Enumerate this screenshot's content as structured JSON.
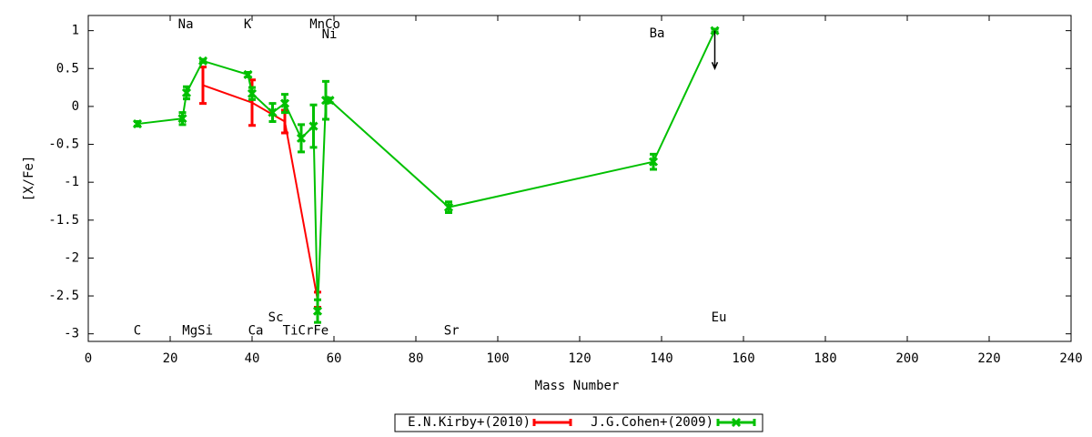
{
  "chart_data": {
    "type": "errorbar-line",
    "x_label": "Mass Number",
    "y_label": "[X/Fe]",
    "xlim": [
      0,
      240
    ],
    "ylim": [
      -3.1,
      1.2
    ],
    "xticks": [
      0,
      20,
      40,
      60,
      80,
      100,
      120,
      140,
      160,
      180,
      200,
      220,
      240
    ],
    "yticks": [
      -3,
      -2.5,
      -2,
      -1.5,
      -1,
      -0.5,
      0,
      0.5,
      1
    ],
    "legend_position": "bottom",
    "series": [
      {
        "name": "E.N.Kirby+(2010)",
        "color": "#ff0000",
        "x": [
          28,
          40,
          48,
          56
        ],
        "values": [
          0.28,
          0.05,
          -0.2,
          -2.55
        ],
        "errors": [
          0.24,
          0.3,
          0.15,
          0.1
        ]
      },
      {
        "name": "J.G.Cohen+(2009)",
        "color": "#00c000",
        "x": [
          12,
          23,
          24,
          28,
          39,
          40,
          45,
          48,
          52,
          55,
          56,
          58,
          59,
          88,
          138,
          153
        ],
        "values": [
          -0.23,
          -0.16,
          0.18,
          0.6,
          0.42,
          0.17,
          -0.08,
          0.04,
          -0.42,
          -0.26,
          -2.7,
          0.08,
          0.08,
          -1.33,
          -0.73,
          1.0
        ],
        "errors": [
          0.03,
          0.08,
          0.08,
          0.02,
          0.03,
          0.08,
          0.12,
          0.12,
          0.18,
          0.28,
          0.15,
          0.25,
          0.03,
          0.07,
          0.1,
          0.02
        ]
      }
    ],
    "upper_limit": {
      "x": 153,
      "from": 1.0,
      "to": 0.5,
      "color": "#000000"
    },
    "annotations": [
      {
        "text": "Na",
        "x": 23.8,
        "y": 1.08
      },
      {
        "text": "K",
        "x": 38.9,
        "y": 1.08
      },
      {
        "text": "MnCo",
        "x": 57.8,
        "y": 1.08
      },
      {
        "text": "Ni",
        "x": 58.9,
        "y": 0.95
      },
      {
        "text": "Ba",
        "x": 138.9,
        "y": 0.96
      },
      {
        "text": "C",
        "x": 12,
        "y": -2.96
      },
      {
        "text": "MgSi",
        "x": 26.7,
        "y": -2.96
      },
      {
        "text": "Ca",
        "x": 40.9,
        "y": -2.96
      },
      {
        "text": "Sc",
        "x": 45.8,
        "y": -2.79
      },
      {
        "text": "TiCrFe",
        "x": 53.1,
        "y": -2.96
      },
      {
        "text": "Sr",
        "x": 88.7,
        "y": -2.96
      },
      {
        "text": "Eu",
        "x": 154,
        "y": -2.79
      }
    ]
  }
}
